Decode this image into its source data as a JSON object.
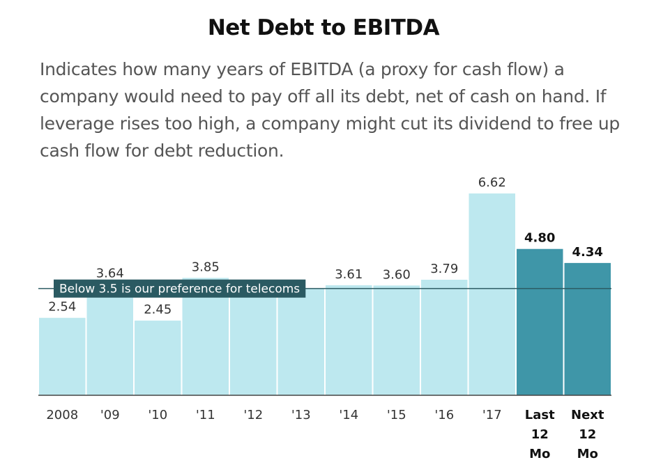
{
  "title": "Net Debt to EBITDA",
  "description": "Indicates how many years of EBITDA (a proxy for cash flow) a company would need to pay off all its debt, net of cash on hand. If leverage rises too high, a company might cut its dividend to free up cash flow for debt reduction.",
  "chart_data": {
    "type": "bar",
    "title": "Net Debt to EBITDA",
    "xlabel": "",
    "ylabel": "",
    "ylim": [
      0,
      6.62
    ],
    "grid": false,
    "categories": [
      "2008",
      "'09",
      "'10",
      "'11",
      "'12",
      "'13",
      "'14",
      "'15",
      "'16",
      "'17",
      "Last 12 Mo",
      "Next 12 Mo"
    ],
    "values": [
      2.54,
      3.64,
      2.45,
      3.85,
      3.5,
      3.5,
      3.61,
      3.6,
      3.79,
      6.62,
      4.8,
      4.34
    ],
    "value_labels": [
      "2.54",
      "3.64",
      "2.45",
      "3.85",
      "",
      "",
      "3.61",
      "3.60",
      "3.79",
      "6.62",
      "4.80",
      "4.34"
    ],
    "highlighted": [
      false,
      false,
      false,
      false,
      false,
      false,
      false,
      false,
      false,
      false,
      true,
      true
    ],
    "colors": {
      "normal": "#bde8ef",
      "highlight": "#3f96a8",
      "reference_line": "#2b5a62",
      "label_bg": "#2b5a62"
    },
    "reference_line": {
      "value": 3.5,
      "label": "Below 3.5 is our preference for telecoms"
    }
  }
}
